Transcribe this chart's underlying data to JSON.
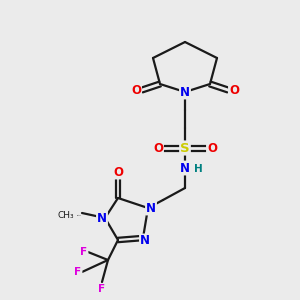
{
  "bg_color": "#ebebeb",
  "atom_colors": {
    "C": "#1a1a1a",
    "N": "#0000ee",
    "O": "#ee0000",
    "S": "#cccc00",
    "F": "#dd00dd",
    "H": "#008080"
  },
  "bond_color": "#1a1a1a",
  "font_size": 8.5,
  "fig_size": [
    3.0,
    3.0
  ],
  "dpi": 100
}
